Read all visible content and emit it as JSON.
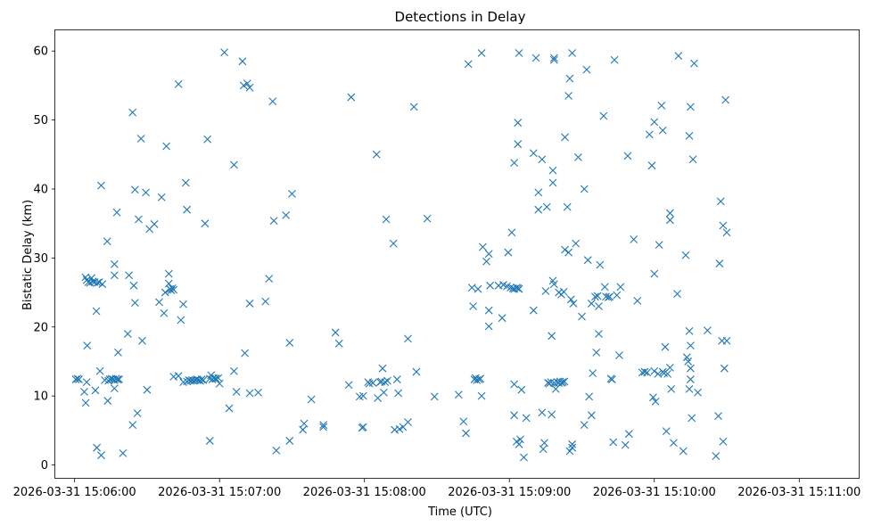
{
  "chart_data": {
    "type": "scatter",
    "title": "Detections in Delay",
    "xlabel": "Time (UTC)",
    "ylabel": "Bistatic Delay (km)",
    "marker": "x",
    "color": "#1f77b4",
    "grid": false,
    "xlim": [
      "2026-03-31 15:05:52",
      "2026-03-31 15:11:25"
    ],
    "ylim": [
      -2,
      63
    ],
    "x_ticks": [
      "2026-03-31 15:06:00",
      "2026-03-31 15:07:00",
      "2026-03-31 15:08:00",
      "2026-03-31 15:09:00",
      "2026-03-31 15:10:00",
      "2026-03-31 15:11:00"
    ],
    "x_tick_labels": [
      "2026-03-31 15:06:00",
      "2026-03-31 15:07:00",
      "2026-03-31 15:08:00",
      "2026-03-31 15:09:00",
      "2026-03-31 15:10:00",
      "2026-03-31 15:11:00"
    ],
    "y_ticks": [
      0,
      10,
      20,
      30,
      40,
      50,
      60
    ],
    "y_tick_labels": [
      "0",
      "10",
      "20",
      "30",
      "40",
      "50",
      "60"
    ],
    "points": [
      [
        "15:06:00.5",
        12.4
      ],
      [
        "15:06:01.2",
        12.5
      ],
      [
        "15:06:01.8",
        12.4
      ],
      [
        "15:06:04.5",
        27.2
      ],
      [
        "15:06:05.0",
        26.8
      ],
      [
        "15:06:05.7",
        26.5
      ],
      [
        "15:06:06.4",
        26.4
      ],
      [
        "15:06:07.0",
        27.1
      ],
      [
        "15:06:07.6",
        26.6
      ],
      [
        "15:06:08.3",
        26.5
      ],
      [
        "15:06:09.5",
        26.4
      ],
      [
        "15:06:10.2",
        26.5
      ],
      [
        "15:06:11.5",
        26.2
      ],
      [
        "15:06:04.0",
        10.6
      ],
      [
        "15:06:05.0",
        12.0
      ],
      [
        "15:06:04.6",
        9.0
      ],
      [
        "15:06:05.2",
        17.3
      ],
      [
        "15:06:08.6",
        10.8
      ],
      [
        "15:06:09.0",
        22.3
      ],
      [
        "15:06:09.2",
        2.5
      ],
      [
        "15:06:10.5",
        13.6
      ],
      [
        "15:06:11.0",
        40.5
      ],
      [
        "15:06:11.0",
        1.4
      ],
      [
        "15:06:12.5",
        12.3
      ],
      [
        "15:06:13.5",
        32.4
      ],
      [
        "15:06:13.7",
        9.3
      ],
      [
        "15:06:14.0",
        12.2
      ],
      [
        "15:06:14.6",
        12.4
      ],
      [
        "15:06:15.3",
        12.5
      ],
      [
        "15:06:15.9",
        12.4
      ],
      [
        "15:06:16.5",
        12.3
      ],
      [
        "15:06:17.1",
        12.5
      ],
      [
        "15:06:17.8",
        12.4
      ],
      [
        "15:06:18.4",
        12.4
      ],
      [
        "15:06:16.5",
        29.1
      ],
      [
        "15:06:16.5",
        27.5
      ],
      [
        "15:06:16.5",
        11.1
      ],
      [
        "15:06:17.5",
        36.6
      ],
      [
        "15:06:18.0",
        16.3
      ],
      [
        "15:06:20.0",
        1.7
      ],
      [
        "15:06:22.5",
        27.5
      ],
      [
        "15:06:22.0",
        19.0
      ],
      [
        "15:06:24.0",
        51.1
      ],
      [
        "15:06:24.0",
        5.8
      ],
      [
        "15:06:24.5",
        26.0
      ],
      [
        "15:06:25.0",
        39.9
      ],
      [
        "15:06:25.0",
        23.5
      ],
      [
        "15:06:26.0",
        7.5
      ],
      [
        "15:06:26.5",
        35.6
      ],
      [
        "15:06:27.5",
        47.3
      ],
      [
        "15:06:28.0",
        18.0
      ],
      [
        "15:06:29.5",
        39.5
      ],
      [
        "15:06:30.0",
        10.9
      ],
      [
        "15:06:31.0",
        34.2
      ],
      [
        "15:06:33.0",
        34.9
      ],
      [
        "15:06:35.0",
        23.6
      ],
      [
        "15:06:36.0",
        38.8
      ],
      [
        "15:06:37.0",
        22.0
      ],
      [
        "15:06:37.5",
        25.0
      ],
      [
        "15:06:38.0",
        46.2
      ],
      [
        "15:06:39.0",
        26.3
      ],
      [
        "15:06:39.0",
        27.7
      ],
      [
        "15:06:39.5",
        25.5
      ],
      [
        "15:06:40.0",
        25.3
      ],
      [
        "15:06:40.5",
        25.6
      ],
      [
        "15:06:41.0",
        25.4
      ],
      [
        "15:06:41.0",
        12.8
      ],
      [
        "15:06:43.0",
        12.9
      ],
      [
        "15:06:43.0",
        55.2
      ],
      [
        "15:06:44.0",
        21.0
      ],
      [
        "15:06:45.0",
        23.3
      ],
      [
        "15:06:45.0",
        12.0
      ],
      [
        "15:06:46.0",
        40.9
      ],
      [
        "15:06:46.5",
        37.0
      ],
      [
        "15:06:46.5",
        12.1
      ],
      [
        "15:06:47.3",
        12.3
      ],
      [
        "15:06:48.0",
        12.2
      ],
      [
        "15:06:48.6",
        12.3
      ],
      [
        "15:06:49.3",
        12.2
      ],
      [
        "15:06:50.0",
        12.3
      ],
      [
        "15:06:50.6",
        12.4
      ],
      [
        "15:06:51.3",
        12.3
      ],
      [
        "15:06:52.0",
        12.2
      ],
      [
        "15:06:52.6",
        12.4
      ],
      [
        "15:06:53.3",
        12.3
      ],
      [
        "15:06:54.0",
        35.0
      ],
      [
        "15:06:55.0",
        47.2
      ],
      [
        "15:06:56.0",
        3.5
      ],
      [
        "15:06:56.0",
        12.5
      ],
      [
        "15:06:56.5",
        13.0
      ],
      [
        "15:06:57.0",
        12.4
      ],
      [
        "15:06:57.6",
        12.6
      ],
      [
        "15:06:58.3",
        12.5
      ],
      [
        "15:06:59.5",
        12.6
      ],
      [
        "15:06:58.5",
        12.5
      ],
      [
        "15:07:00.0",
        11.8
      ],
      [
        "15:07:02.0",
        59.8
      ],
      [
        "15:07:04.0",
        8.2
      ],
      [
        "15:07:06.0",
        43.5
      ],
      [
        "15:07:06.0",
        13.6
      ],
      [
        "15:07:07.0",
        10.6
      ],
      [
        "15:07:09.5",
        58.5
      ],
      [
        "15:07:10.0",
        55.0
      ],
      [
        "15:07:10.5",
        16.2
      ],
      [
        "15:07:11.5",
        55.3
      ],
      [
        "15:07:12.5",
        54.7
      ],
      [
        "15:07:12.5",
        23.4
      ],
      [
        "15:07:12.5",
        10.4
      ],
      [
        "15:07:16.0",
        10.5
      ],
      [
        "15:07:19.0",
        23.7
      ],
      [
        "15:07:20.5",
        27.0
      ],
      [
        "15:07:22.0",
        52.7
      ],
      [
        "15:07:22.5",
        35.4
      ],
      [
        "15:07:23.5",
        2.1
      ],
      [
        "15:07:27.5",
        36.2
      ],
      [
        "15:07:29.0",
        17.7
      ],
      [
        "15:07:29.0",
        3.5
      ],
      [
        "15:07:30.0",
        39.3
      ],
      [
        "15:07:34.5",
        5.1
      ],
      [
        "15:07:35.0",
        6.0
      ],
      [
        "15:07:38.0",
        9.5
      ],
      [
        "15:07:43.0",
        5.8
      ],
      [
        "15:07:43.0",
        5.5
      ],
      [
        "15:07:48.0",
        19.2
      ],
      [
        "15:07:49.5",
        17.6
      ],
      [
        "15:07:53.5",
        11.6
      ],
      [
        "15:07:54.5",
        53.3
      ],
      [
        "15:07:58.0",
        9.9
      ],
      [
        "15:07:59.0",
        5.4
      ],
      [
        "15:07:59.5",
        5.5
      ],
      [
        "15:07:59.5",
        10.0
      ],
      [
        "15:08:01.5",
        12.0
      ],
      [
        "15:08:02.0",
        11.8
      ],
      [
        "15:08:03.5",
        11.9
      ],
      [
        "15:08:05.0",
        45.0
      ],
      [
        "15:08:05.5",
        9.7
      ],
      [
        "15:08:06.5",
        12.0
      ],
      [
        "15:08:07.0",
        12.1
      ],
      [
        "15:08:07.5",
        14.0
      ],
      [
        "15:08:08.0",
        10.5
      ],
      [
        "15:08:08.5",
        12.0
      ],
      [
        "15:08:09.0",
        35.6
      ],
      [
        "15:08:09.5",
        12.2
      ],
      [
        "15:08:12.0",
        32.1
      ],
      [
        "15:08:12.5",
        5.1
      ],
      [
        "15:08:13.5",
        12.4
      ],
      [
        "15:08:14.0",
        10.4
      ],
      [
        "15:08:14.5",
        5.2
      ],
      [
        "15:08:16.0",
        5.5
      ],
      [
        "15:08:18.0",
        6.2
      ],
      [
        "15:08:18.0",
        18.3
      ],
      [
        "15:08:20.5",
        51.9
      ],
      [
        "15:08:21.5",
        13.5
      ],
      [
        "15:08:26.0",
        35.7
      ],
      [
        "15:08:29.0",
        9.9
      ],
      [
        "15:08:39.0",
        10.2
      ],
      [
        "15:08:41.0",
        6.3
      ],
      [
        "15:08:42.0",
        4.6
      ],
      [
        "15:08:43.0",
        58.1
      ],
      [
        "15:08:44.5",
        25.7
      ],
      [
        "15:08:45.0",
        23.0
      ],
      [
        "15:08:45.5",
        12.4
      ],
      [
        "15:08:46.0",
        12.6
      ],
      [
        "15:08:46.5",
        12.3
      ],
      [
        "15:08:47.0",
        25.5
      ],
      [
        "15:08:47.5",
        12.4
      ],
      [
        "15:08:48.0",
        12.5
      ],
      [
        "15:08:48.5",
        59.7
      ],
      [
        "15:08:48.5",
        10.0
      ],
      [
        "15:08:49.0",
        31.6
      ],
      [
        "15:08:50.5",
        29.5
      ],
      [
        "15:08:51.5",
        30.6
      ],
      [
        "15:08:51.5",
        22.4
      ],
      [
        "15:08:51.5",
        20.1
      ],
      [
        "15:08:52.0",
        26.0
      ],
      [
        "15:08:55.5",
        26.0
      ],
      [
        "15:08:57.5",
        26.1
      ],
      [
        "15:08:57.0",
        21.3
      ],
      [
        "15:08:59.0",
        25.9
      ],
      [
        "15:08:59.5",
        30.8
      ],
      [
        "15:09:00.5",
        25.7
      ],
      [
        "15:09:01.5",
        25.6
      ],
      [
        "15:09:02.0",
        25.5
      ],
      [
        "15:09:03.0",
        25.7
      ],
      [
        "15:09:03.5",
        25.6
      ],
      [
        "15:09:04.0",
        25.5
      ],
      [
        "15:09:01.0",
        33.7
      ],
      [
        "15:09:02.0",
        43.8
      ],
      [
        "15:09:02.0",
        11.7
      ],
      [
        "15:09:02.0",
        7.2
      ],
      [
        "15:09:03.0",
        3.4
      ],
      [
        "15:09:03.5",
        49.6
      ],
      [
        "15:09:03.5",
        46.5
      ],
      [
        "15:09:04.0",
        59.7
      ],
      [
        "15:09:04.0",
        3.0
      ],
      [
        "15:09:04.5",
        3.7
      ],
      [
        "15:09:05.0",
        10.9
      ],
      [
        "15:09:06.0",
        1.1
      ],
      [
        "15:09:07.0",
        6.8
      ],
      [
        "15:09:10.0",
        45.2
      ],
      [
        "15:09:10.0",
        22.4
      ],
      [
        "15:09:11.0",
        59.0
      ],
      [
        "15:09:12.0",
        39.5
      ],
      [
        "15:09:12.0",
        37.0
      ],
      [
        "15:09:13.5",
        44.3
      ],
      [
        "15:09:13.5",
        7.6
      ],
      [
        "15:09:14.0",
        2.3
      ],
      [
        "15:09:14.5",
        3.2
      ],
      [
        "15:09:15.0",
        25.2
      ],
      [
        "15:09:15.5",
        37.4
      ],
      [
        "15:09:16.0",
        11.9
      ],
      [
        "15:09:16.6",
        11.8
      ],
      [
        "15:09:17.2",
        12.0
      ],
      [
        "15:09:17.5",
        18.7
      ],
      [
        "15:09:17.5",
        7.3
      ],
      [
        "15:09:18.0",
        42.7
      ],
      [
        "15:09:18.0",
        40.9
      ],
      [
        "15:09:18.0",
        26.7
      ],
      [
        "15:09:18.5",
        26.2
      ],
      [
        "15:09:18.5",
        58.7
      ],
      [
        "15:09:18.5",
        59.0
      ],
      [
        "15:09:18.5",
        11.9
      ],
      [
        "15:09:19.2",
        11.0
      ],
      [
        "15:09:19.8",
        12.0
      ],
      [
        "15:09:20.4",
        11.9
      ],
      [
        "15:09:21.0",
        12.1
      ],
      [
        "15:09:21.6",
        11.9
      ],
      [
        "15:09:22.2",
        12.0
      ],
      [
        "15:09:22.8",
        12.1
      ],
      [
        "15:09:20.5",
        25.0
      ],
      [
        "15:09:21.5",
        24.7
      ],
      [
        "15:09:22.5",
        25.1
      ],
      [
        "15:09:23.0",
        31.2
      ],
      [
        "15:09:23.0",
        47.5
      ],
      [
        "15:09:24.0",
        37.4
      ],
      [
        "15:09:24.5",
        30.8
      ],
      [
        "15:09:24.5",
        53.5
      ],
      [
        "15:09:25.0",
        56.0
      ],
      [
        "15:09:25.0",
        2.0
      ],
      [
        "15:09:25.5",
        24.0
      ],
      [
        "15:09:26.0",
        3.0
      ],
      [
        "15:09:26.0",
        2.5
      ],
      [
        "15:09:26.0",
        59.7
      ],
      [
        "15:09:26.5",
        23.4
      ],
      [
        "15:09:27.5",
        32.1
      ],
      [
        "15:09:28.5",
        44.6
      ],
      [
        "15:09:30.0",
        21.5
      ],
      [
        "15:09:31.0",
        5.8
      ],
      [
        "15:09:31.0",
        40.0
      ],
      [
        "15:09:32.0",
        57.3
      ],
      [
        "15:09:32.5",
        29.7
      ],
      [
        "15:09:33.0",
        9.9
      ],
      [
        "15:09:34.0",
        23.4
      ],
      [
        "15:09:34.0",
        7.2
      ],
      [
        "15:09:34.5",
        13.3
      ],
      [
        "15:09:35.5",
        24.4
      ],
      [
        "15:09:36.0",
        16.3
      ],
      [
        "15:09:36.5",
        24.5
      ],
      [
        "15:09:37.0",
        23.0
      ],
      [
        "15:09:37.5",
        29.0
      ],
      [
        "15:09:37.0",
        19.0
      ],
      [
        "15:09:39.0",
        50.6
      ],
      [
        "15:09:39.5",
        25.8
      ],
      [
        "15:09:40.0",
        24.4
      ],
      [
        "15:09:41.0",
        24.3
      ],
      [
        "15:09:41.5",
        24.4
      ],
      [
        "15:09:42.0",
        12.5
      ],
      [
        "15:09:42.5",
        12.4
      ],
      [
        "15:09:43.5",
        58.7
      ],
      [
        "15:09:43.0",
        3.3
      ],
      [
        "15:09:44.5",
        24.6
      ],
      [
        "15:09:45.5",
        15.9
      ],
      [
        "15:09:46.0",
        25.8
      ],
      [
        "15:09:48.0",
        2.9
      ],
      [
        "15:09:49.5",
        4.5
      ],
      [
        "15:09:49.0",
        44.8
      ],
      [
        "15:09:51.5",
        32.7
      ],
      [
        "15:09:53.0",
        23.8
      ],
      [
        "15:09:55.0",
        13.4
      ],
      [
        "15:09:56.0",
        13.5
      ],
      [
        "15:09:57.0",
        13.4
      ],
      [
        "15:09:58.0",
        47.9
      ],
      [
        "15:09:59.0",
        43.4
      ],
      [
        "15:09:59.5",
        9.8
      ],
      [
        "15:10:00.0",
        49.7
      ],
      [
        "15:10:00.0",
        27.7
      ],
      [
        "15:10:00.0",
        13.6
      ],
      [
        "15:10:00.5",
        9.2
      ],
      [
        "15:10:01.5",
        13.2
      ],
      [
        "15:10:02.0",
        31.9
      ],
      [
        "15:10:03.0",
        52.1
      ],
      [
        "15:10:03.5",
        48.5
      ],
      [
        "15:10:03.5",
        13.5
      ],
      [
        "15:10:04.0",
        13.3
      ],
      [
        "15:10:04.5",
        17.1
      ],
      [
        "15:10:05.5",
        13.2
      ],
      [
        "15:10:05.0",
        4.9
      ],
      [
        "15:10:06.5",
        36.5
      ],
      [
        "15:10:06.5",
        35.5
      ],
      [
        "15:10:06.5",
        14.1
      ],
      [
        "15:10:07.0",
        11.0
      ],
      [
        "15:10:08.0",
        3.2
      ],
      [
        "15:10:09.5",
        24.8
      ],
      [
        "15:10:10.0",
        59.3
      ],
      [
        "15:10:12.0",
        2.0
      ],
      [
        "15:10:13.0",
        30.4
      ],
      [
        "15:10:13.5",
        15.6
      ],
      [
        "15:10:14.0",
        15.0
      ],
      [
        "15:10:14.5",
        47.7
      ],
      [
        "15:10:14.5",
        11.0
      ],
      [
        "15:10:15.0",
        51.9
      ],
      [
        "15:10:14.5",
        19.4
      ],
      [
        "15:10:15.0",
        17.3
      ],
      [
        "15:10:15.0",
        14.0
      ],
      [
        "15:10:15.0",
        12.4
      ],
      [
        "15:10:15.5",
        6.8
      ],
      [
        "15:10:16.0",
        44.3
      ],
      [
        "15:10:16.5",
        58.2
      ],
      [
        "15:10:18.0",
        10.5
      ],
      [
        "15:10:22.0",
        19.5
      ],
      [
        "15:10:25.5",
        1.3
      ],
      [
        "15:10:26.5",
        7.1
      ],
      [
        "15:10:27.0",
        29.2
      ],
      [
        "15:10:27.5",
        38.2
      ],
      [
        "15:10:28.0",
        18.0
      ],
      [
        "15:10:28.5",
        34.7
      ],
      [
        "15:10:28.5",
        3.4
      ],
      [
        "15:10:29.0",
        14.0
      ],
      [
        "15:10:29.5",
        52.9
      ],
      [
        "15:10:30.0",
        18.0
      ],
      [
        "15:10:30.0",
        33.7
      ]
    ]
  }
}
